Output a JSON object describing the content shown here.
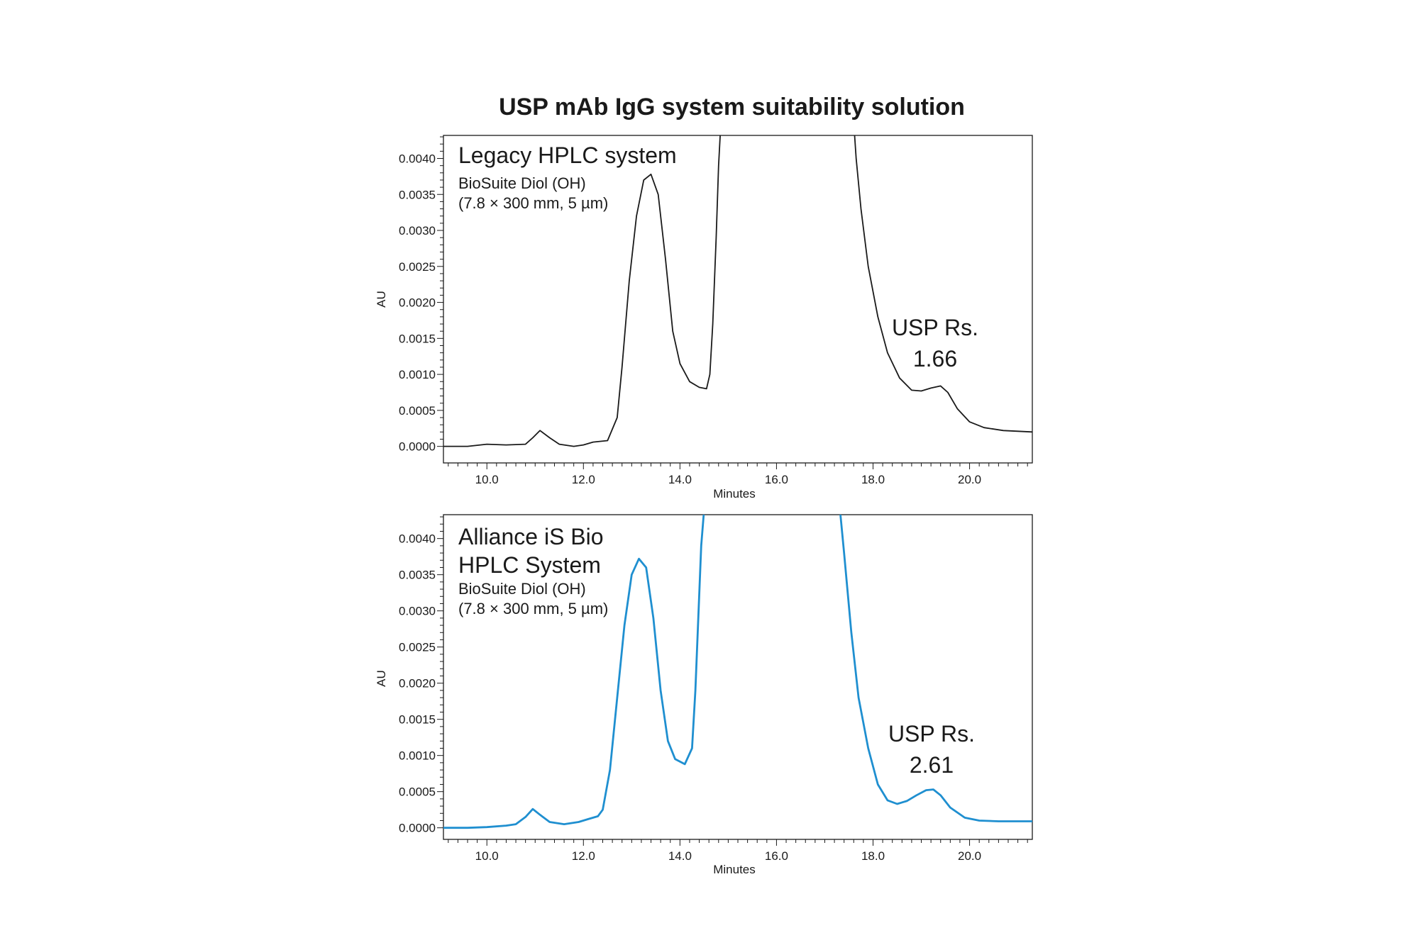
{
  "title": "USP mAb IgG system suitability solution",
  "chart_data": [
    {
      "type": "line",
      "xlabel": "Minutes",
      "ylabel": "AU",
      "xlim": [
        9.1,
        21.3
      ],
      "ylim": [
        -0.00023,
        0.00432
      ],
      "x_ticks": [
        "10.0",
        "12.0",
        "14.0",
        "16.0",
        "18.0",
        "20.0"
      ],
      "y_ticks": [
        "0.0000",
        "0.0005",
        "0.0010",
        "0.0015",
        "0.0020",
        "0.0025",
        "0.0030",
        "0.0035",
        "0.0040"
      ],
      "line_color": "#1a1a1a",
      "annotations": {
        "system": "Legacy HPLC system",
        "column_name": "BioSuite Diol (OH)",
        "column_dims": "(7.8 × 300 mm, 5 µm)",
        "rs_label": "USP Rs.",
        "rs_value": "1.66"
      },
      "series": [
        {
          "x": [
            9.1,
            9.6,
            10.0,
            10.4,
            10.8,
            10.95,
            11.1,
            11.3,
            11.5,
            11.8,
            12.0,
            12.2,
            12.5,
            12.7,
            12.8,
            12.95,
            13.1,
            13.25,
            13.4,
            13.55,
            13.7,
            13.85,
            14.0,
            14.2,
            14.4,
            14.55,
            14.62,
            14.68,
            14.75,
            14.8,
            14.84,
            14.9,
            17.6,
            17.65,
            17.75,
            17.9,
            18.1,
            18.3,
            18.55,
            18.8,
            19.0,
            19.2,
            19.4,
            19.55,
            19.75,
            20.0,
            20.3,
            20.7,
            21.3
          ],
          "y": [
            0.0,
            0.0,
            3e-05,
            2e-05,
            3e-05,
            0.00012,
            0.00022,
            0.00012,
            3e-05,
            0.0,
            2e-05,
            6e-05,
            8e-05,
            0.0004,
            0.0011,
            0.0023,
            0.0032,
            0.0037,
            0.00378,
            0.0035,
            0.0026,
            0.0016,
            0.00115,
            0.0009,
            0.00082,
            0.0008,
            0.001,
            0.0017,
            0.0029,
            0.0039,
            0.0044,
            0.0045,
            0.0045,
            0.004,
            0.0033,
            0.0025,
            0.0018,
            0.0013,
            0.00095,
            0.00078,
            0.00077,
            0.00081,
            0.00084,
            0.00075,
            0.00052,
            0.00034,
            0.00026,
            0.00022,
            0.0002
          ]
        }
      ]
    },
    {
      "type": "line",
      "xlabel": "Minutes",
      "ylabel": "AU",
      "xlim": [
        9.1,
        21.3
      ],
      "ylim": [
        -0.00016,
        0.00433
      ],
      "x_ticks": [
        "10.0",
        "12.0",
        "14.0",
        "16.0",
        "18.0",
        "20.0"
      ],
      "y_ticks": [
        "0.0000",
        "0.0005",
        "0.0010",
        "0.0015",
        "0.0020",
        "0.0025",
        "0.0030",
        "0.0035",
        "0.0040"
      ],
      "line_color": "#1f8fd0",
      "annotations": {
        "system_line1": "Alliance iS Bio",
        "system_line2": "HPLC System",
        "column_name": "BioSuite Diol (OH)",
        "column_dims": "(7.8 × 300 mm, 5 µm)",
        "rs_label": "USP Rs.",
        "rs_value": "2.61"
      },
      "series": [
        {
          "x": [
            9.1,
            9.6,
            10.0,
            10.4,
            10.6,
            10.8,
            10.95,
            11.1,
            11.3,
            11.6,
            11.9,
            12.1,
            12.3,
            12.4,
            12.55,
            12.7,
            12.85,
            13.0,
            13.15,
            13.3,
            13.45,
            13.6,
            13.75,
            13.9,
            14.1,
            14.25,
            14.32,
            14.38,
            14.44,
            14.5,
            14.55,
            17.3,
            17.4,
            17.55,
            17.7,
            17.9,
            18.1,
            18.3,
            18.5,
            18.7,
            18.9,
            19.1,
            19.25,
            19.4,
            19.6,
            19.9,
            20.2,
            20.6,
            21.3
          ],
          "y": [
            0.0,
            0.0,
            1e-05,
            3e-05,
            5e-05,
            0.00015,
            0.00026,
            0.00018,
            8e-05,
            5e-05,
            8e-05,
            0.00012,
            0.00016,
            0.00025,
            0.0008,
            0.0018,
            0.0028,
            0.0035,
            0.00372,
            0.0036,
            0.0029,
            0.0019,
            0.0012,
            0.00095,
            0.00088,
            0.0011,
            0.0019,
            0.0029,
            0.0039,
            0.0044,
            0.0045,
            0.0045,
            0.0038,
            0.0027,
            0.0018,
            0.0011,
            0.0006,
            0.00038,
            0.00033,
            0.00037,
            0.00045,
            0.00052,
            0.00053,
            0.00045,
            0.00028,
            0.00014,
            0.0001,
            9e-05,
            9e-05
          ]
        }
      ]
    }
  ]
}
